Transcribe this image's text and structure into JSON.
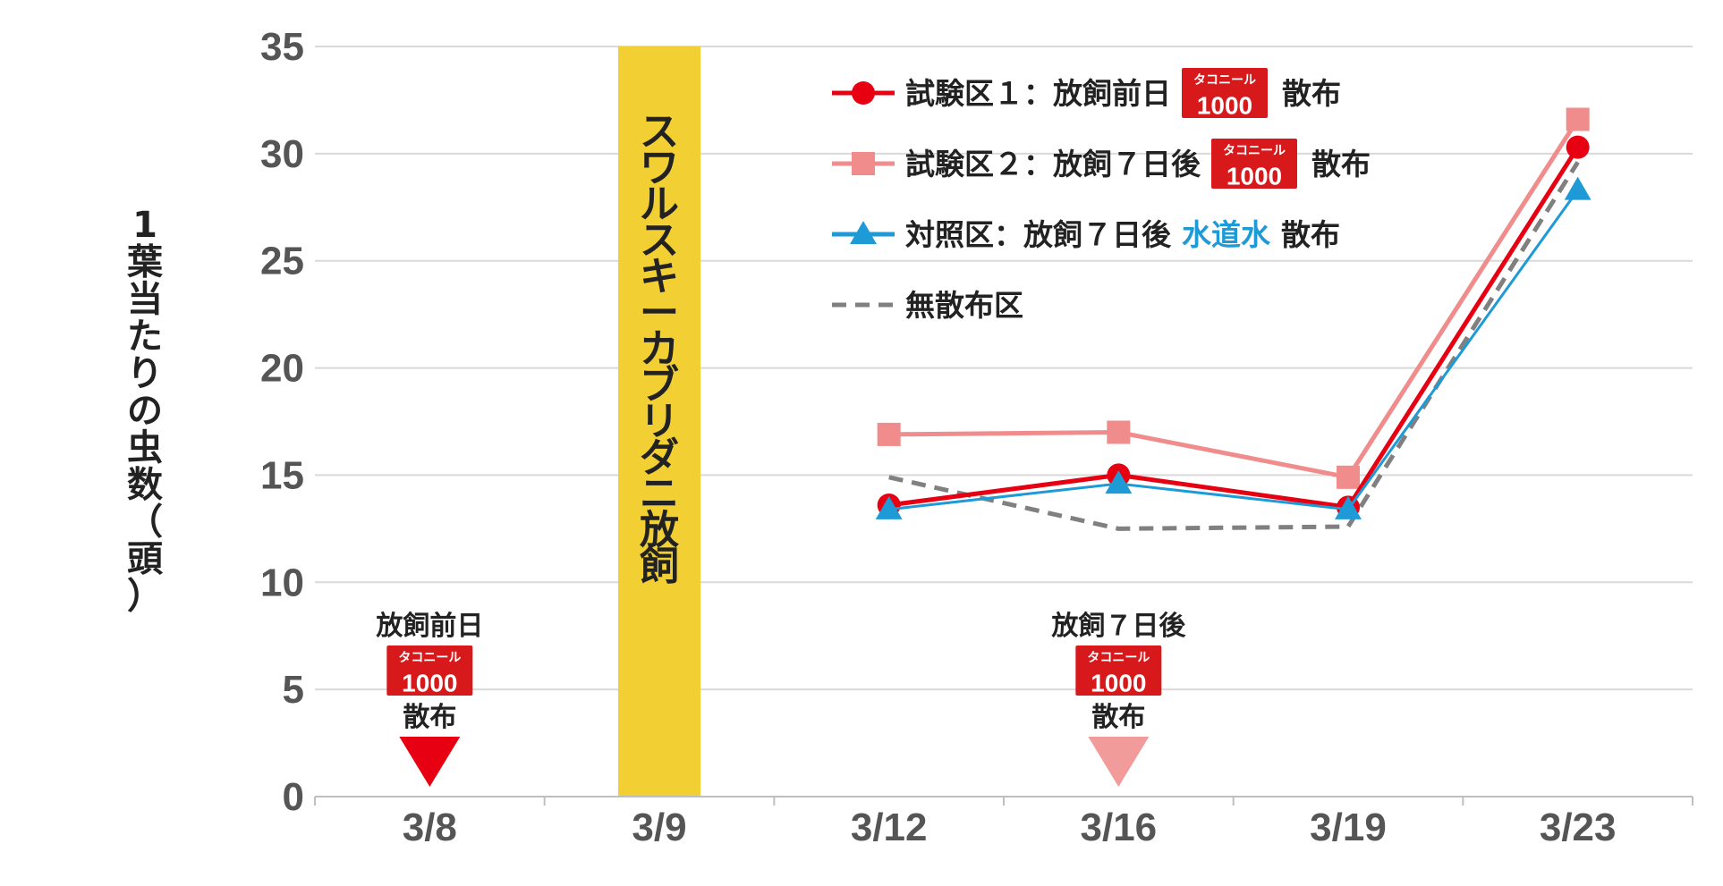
{
  "chart_data": {
    "type": "line",
    "ylabel": "1葉当たりの虫数（頭）",
    "ylim": [
      0,
      35
    ],
    "yticks": [
      "0",
      "5",
      "10",
      "15",
      "20",
      "25",
      "30",
      "35"
    ],
    "categories": [
      "3/8",
      "3/9",
      "3/12",
      "3/16",
      "3/19",
      "3/23"
    ],
    "grid": true,
    "legend_position": "top-right",
    "band": {
      "category": "3/9",
      "label": "スワルスキーカブリダニ放飼",
      "color": "#f2cf32"
    },
    "series": [
      {
        "legend_prefix": "試験区１：放飼前日",
        "legend_suffix": "散布",
        "has_logo": true,
        "color": "#e60012",
        "marker": "circle",
        "dash": "",
        "x": [
          "3/12",
          "3/16",
          "3/19",
          "3/23"
        ],
        "values": [
          13.6,
          15.0,
          13.5,
          30.3
        ]
      },
      {
        "legend_prefix": "試験区２：放飼７日後",
        "legend_suffix": "散布",
        "has_logo": true,
        "color": "#f08c8c",
        "marker": "square",
        "dash": "",
        "x": [
          "3/12",
          "3/16",
          "3/19",
          "3/23"
        ],
        "values": [
          16.9,
          17.0,
          14.9,
          31.6
        ]
      },
      {
        "legend_prefix": "対照区：放飼７日後",
        "legend_highlight": "水道水",
        "legend_suffix": "散布",
        "highlight_color": "#1e9ad6",
        "has_logo": false,
        "color": "#1e9ad6",
        "marker": "triangle",
        "dash": "",
        "x": [
          "3/12",
          "3/16",
          "3/19",
          "3/23"
        ],
        "values": [
          13.4,
          14.6,
          13.4,
          28.3
        ]
      },
      {
        "legend_prefix": "無散布区",
        "legend_suffix": "",
        "has_logo": false,
        "color": "#808080",
        "marker": "none",
        "dash": "dashed",
        "x": [
          "3/12",
          "3/16",
          "3/19",
          "3/23"
        ],
        "values": [
          14.9,
          12.5,
          12.6,
          29.6
        ]
      }
    ],
    "annotations": [
      {
        "category": "3/8",
        "title": "放飼前日",
        "logo_num": "1000",
        "logo_top": "タコニール",
        "action": "散布",
        "arrow_color": "#e60012"
      },
      {
        "category": "3/16",
        "title": "放飼７日後",
        "logo_num": "1000",
        "logo_top": "タコニール",
        "action": "散布",
        "arrow_color": "#f29b9b"
      }
    ],
    "logo": {
      "top": "タコニール",
      "num": "1000",
      "color": "#d7191c"
    }
  }
}
